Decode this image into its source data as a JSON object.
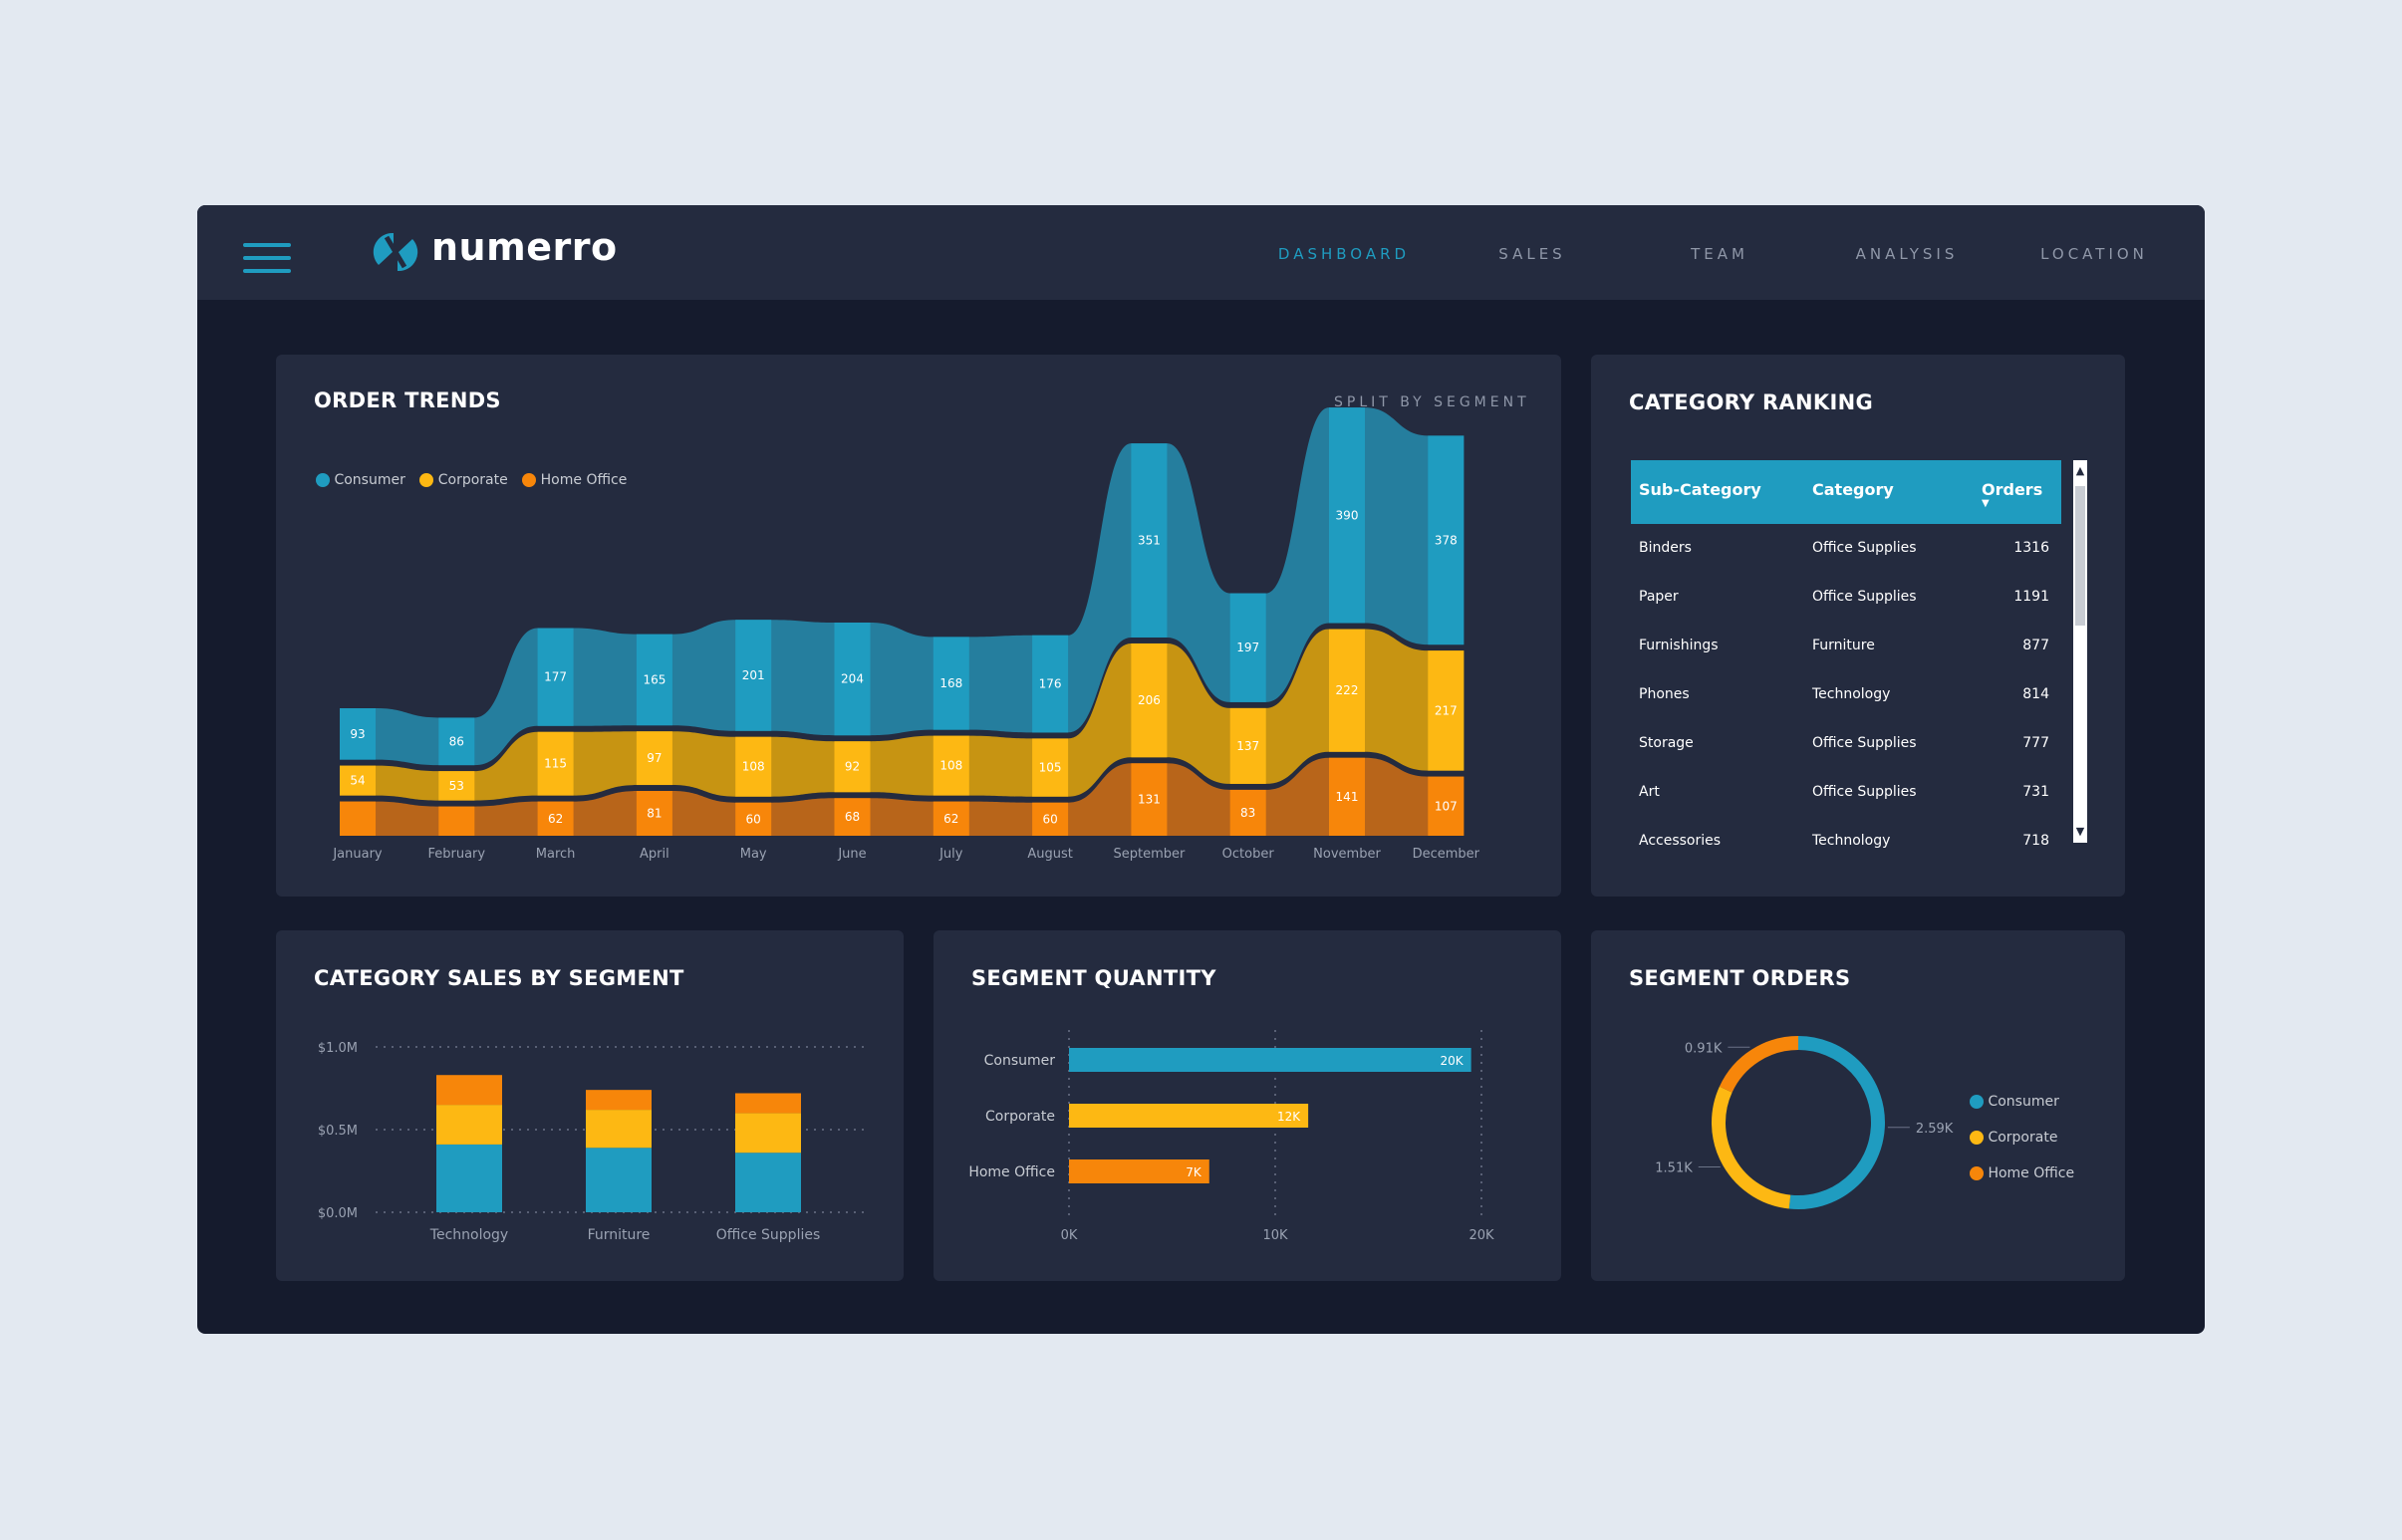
{
  "app": {
    "name": "numerro"
  },
  "nav": {
    "items": [
      {
        "label": "DASHBOARD",
        "active": true
      },
      {
        "label": "SALES",
        "active": false
      },
      {
        "label": "TEAM",
        "active": false
      },
      {
        "label": "ANALYSIS",
        "active": false
      },
      {
        "label": "LOCATION",
        "active": false
      }
    ]
  },
  "colors": {
    "consumer": "#1f9cc0",
    "corporate": "#fdb813",
    "home_office": "#f7860a",
    "background": "#151b2d",
    "card": "#242b3f"
  },
  "order_trends": {
    "title": "ORDER TRENDS",
    "link": "SPLIT BY SEGMENT",
    "legend": [
      "Consumer",
      "Corporate",
      "Home Office"
    ],
    "chart_data": {
      "type": "bar",
      "categories": [
        "January",
        "February",
        "March",
        "April",
        "May",
        "June",
        "July",
        "August",
        "September",
        "October",
        "November",
        "December"
      ],
      "series": [
        {
          "name": "Home Office",
          "values": [
            62,
            53,
            62,
            81,
            60,
            68,
            62,
            60,
            131,
            83,
            141,
            107
          ]
        },
        {
          "name": "Corporate",
          "values": [
            54,
            53,
            115,
            97,
            108,
            92,
            108,
            105,
            206,
            137,
            222,
            217
          ]
        },
        {
          "name": "Consumer",
          "values": [
            93,
            86,
            177,
            165,
            201,
            204,
            168,
            176,
            351,
            197,
            390,
            378
          ]
        }
      ],
      "labels": {
        "Home Office": [
          "",
          "",
          "62",
          "81",
          "60",
          "68",
          "62",
          "60",
          "131",
          "83",
          "141",
          "107"
        ],
        "Corporate": [
          "54",
          "53",
          "115",
          "97",
          "108",
          "92",
          "108",
          "105",
          "206",
          "137",
          "222",
          "217"
        ],
        "Consumer": [
          "93",
          "86",
          "177",
          "165",
          "201",
          "204",
          "168",
          "176",
          "351",
          "197",
          "390",
          "378"
        ]
      }
    }
  },
  "category_ranking": {
    "title": "CATEGORY RANKING",
    "columns": [
      "Sub-Category",
      "Category",
      "Orders"
    ],
    "rows": [
      [
        "Binders",
        "Office Supplies",
        "1316"
      ],
      [
        "Paper",
        "Office Supplies",
        "1191"
      ],
      [
        "Furnishings",
        "Furniture",
        "877"
      ],
      [
        "Phones",
        "Technology",
        "814"
      ],
      [
        "Storage",
        "Office Supplies",
        "777"
      ],
      [
        "Art",
        "Office Supplies",
        "731"
      ],
      [
        "Accessories",
        "Technology",
        "718"
      ]
    ]
  },
  "category_sales": {
    "title": "CATEGORY SALES BY SEGMENT",
    "chart_data": {
      "type": "bar",
      "categories": [
        "Technology",
        "Furniture",
        "Office Supplies"
      ],
      "series": [
        {
          "name": "Consumer",
          "values": [
            0.41,
            0.39,
            0.36
          ]
        },
        {
          "name": "Corporate",
          "values": [
            0.24,
            0.23,
            0.24
          ]
        },
        {
          "name": "Home Office",
          "values": [
            0.18,
            0.12,
            0.12
          ]
        }
      ],
      "yticks": [
        "$0.0M",
        "$0.5M",
        "$1.0M"
      ],
      "ylim": [
        0,
        1.0
      ]
    }
  },
  "segment_quantity": {
    "title": "SEGMENT QUANTITY",
    "chart_data": {
      "type": "bar",
      "categories": [
        "Consumer",
        "Corporate",
        "Home Office"
      ],
      "values": [
        19500,
        11600,
        6800
      ],
      "labels": [
        "20K",
        "12K",
        "7K"
      ],
      "xticks": [
        "0K",
        "10K",
        "20K"
      ],
      "xlim": [
        0,
        20000
      ]
    }
  },
  "segment_orders": {
    "title": "SEGMENT ORDERS",
    "legend": [
      "Consumer",
      "Corporate",
      "Home Office"
    ],
    "chart_data": {
      "type": "pie",
      "categories": [
        "Consumer",
        "Corporate",
        "Home Office"
      ],
      "values": [
        2.59,
        1.51,
        0.91
      ],
      "labels": [
        "2.59K",
        "1.51K",
        "0.91K"
      ]
    }
  }
}
